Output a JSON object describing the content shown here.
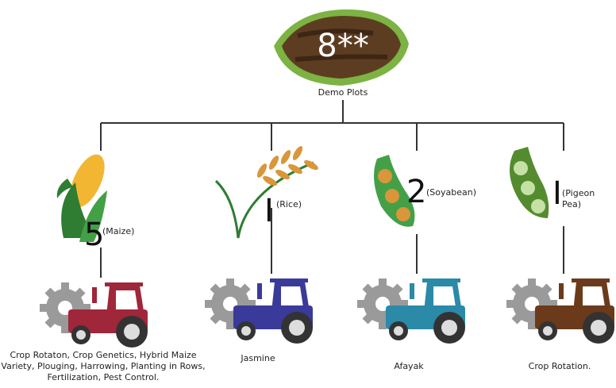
{
  "header": {
    "number": "8**",
    "label": "Demo Plots"
  },
  "branches": [
    {
      "count": "5",
      "crop": "(Maize)",
      "practices": "Crop Rotaton, Crop Genetics, Hybrid Maize Variety, Plouging, Harrowing, Planting in Rows, Fertilization, Pest Control."
    },
    {
      "count": "I",
      "crop": "(Rice)",
      "practices": "Jasmine"
    },
    {
      "count": "2",
      "crop": "(Soyabean)",
      "practices": "Afayak"
    },
    {
      "count": "I",
      "crop": "(Pigeon Pea)",
      "practices": "Crop Rotation."
    }
  ]
}
